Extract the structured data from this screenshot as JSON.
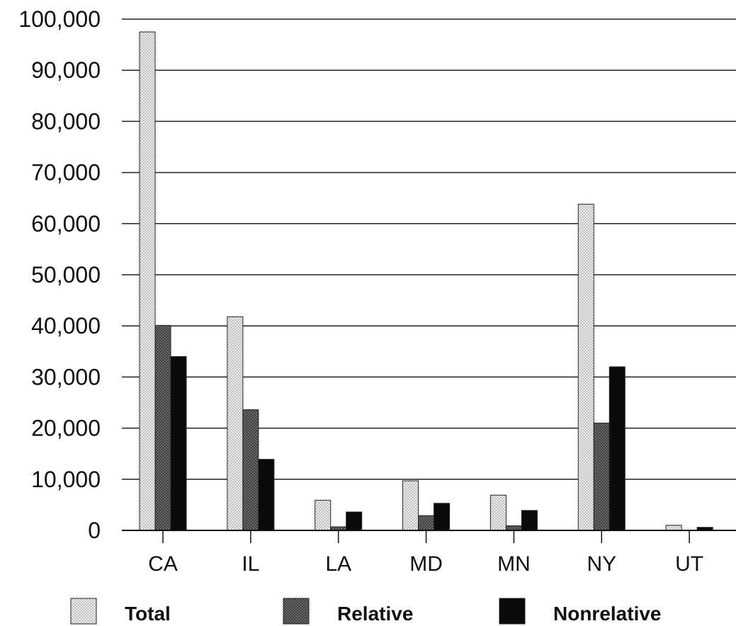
{
  "chart_data": {
    "type": "bar",
    "title": "",
    "xlabel": "",
    "ylabel": "",
    "ylim": [
      0,
      100000
    ],
    "yticks": [
      0,
      10000,
      20000,
      30000,
      40000,
      50000,
      60000,
      70000,
      80000,
      90000,
      100000
    ],
    "ytick_labels": [
      "0",
      "10,000",
      "20,000",
      "30,000",
      "40,000",
      "50,000",
      "60,000",
      "70,000",
      "80,000",
      "90,000",
      "100,000"
    ],
    "grid": true,
    "legend_position": "bottom",
    "categories": [
      "CA",
      "IL",
      "LA",
      "MD",
      "MN",
      "NY",
      "UT"
    ],
    "series": [
      {
        "name": "Total",
        "color": "#d4d4d4",
        "values": [
          97500,
          41800,
          5900,
          9700,
          6900,
          63800,
          1000
        ]
      },
      {
        "name": "Relative",
        "color": "#5a5a5a",
        "values": [
          40100,
          23600,
          700,
          2900,
          900,
          21000,
          0
        ]
      },
      {
        "name": "Nonrelative",
        "color": "#0d0d0d",
        "values": [
          34000,
          13900,
          3600,
          5300,
          3900,
          32000,
          600
        ]
      }
    ]
  }
}
